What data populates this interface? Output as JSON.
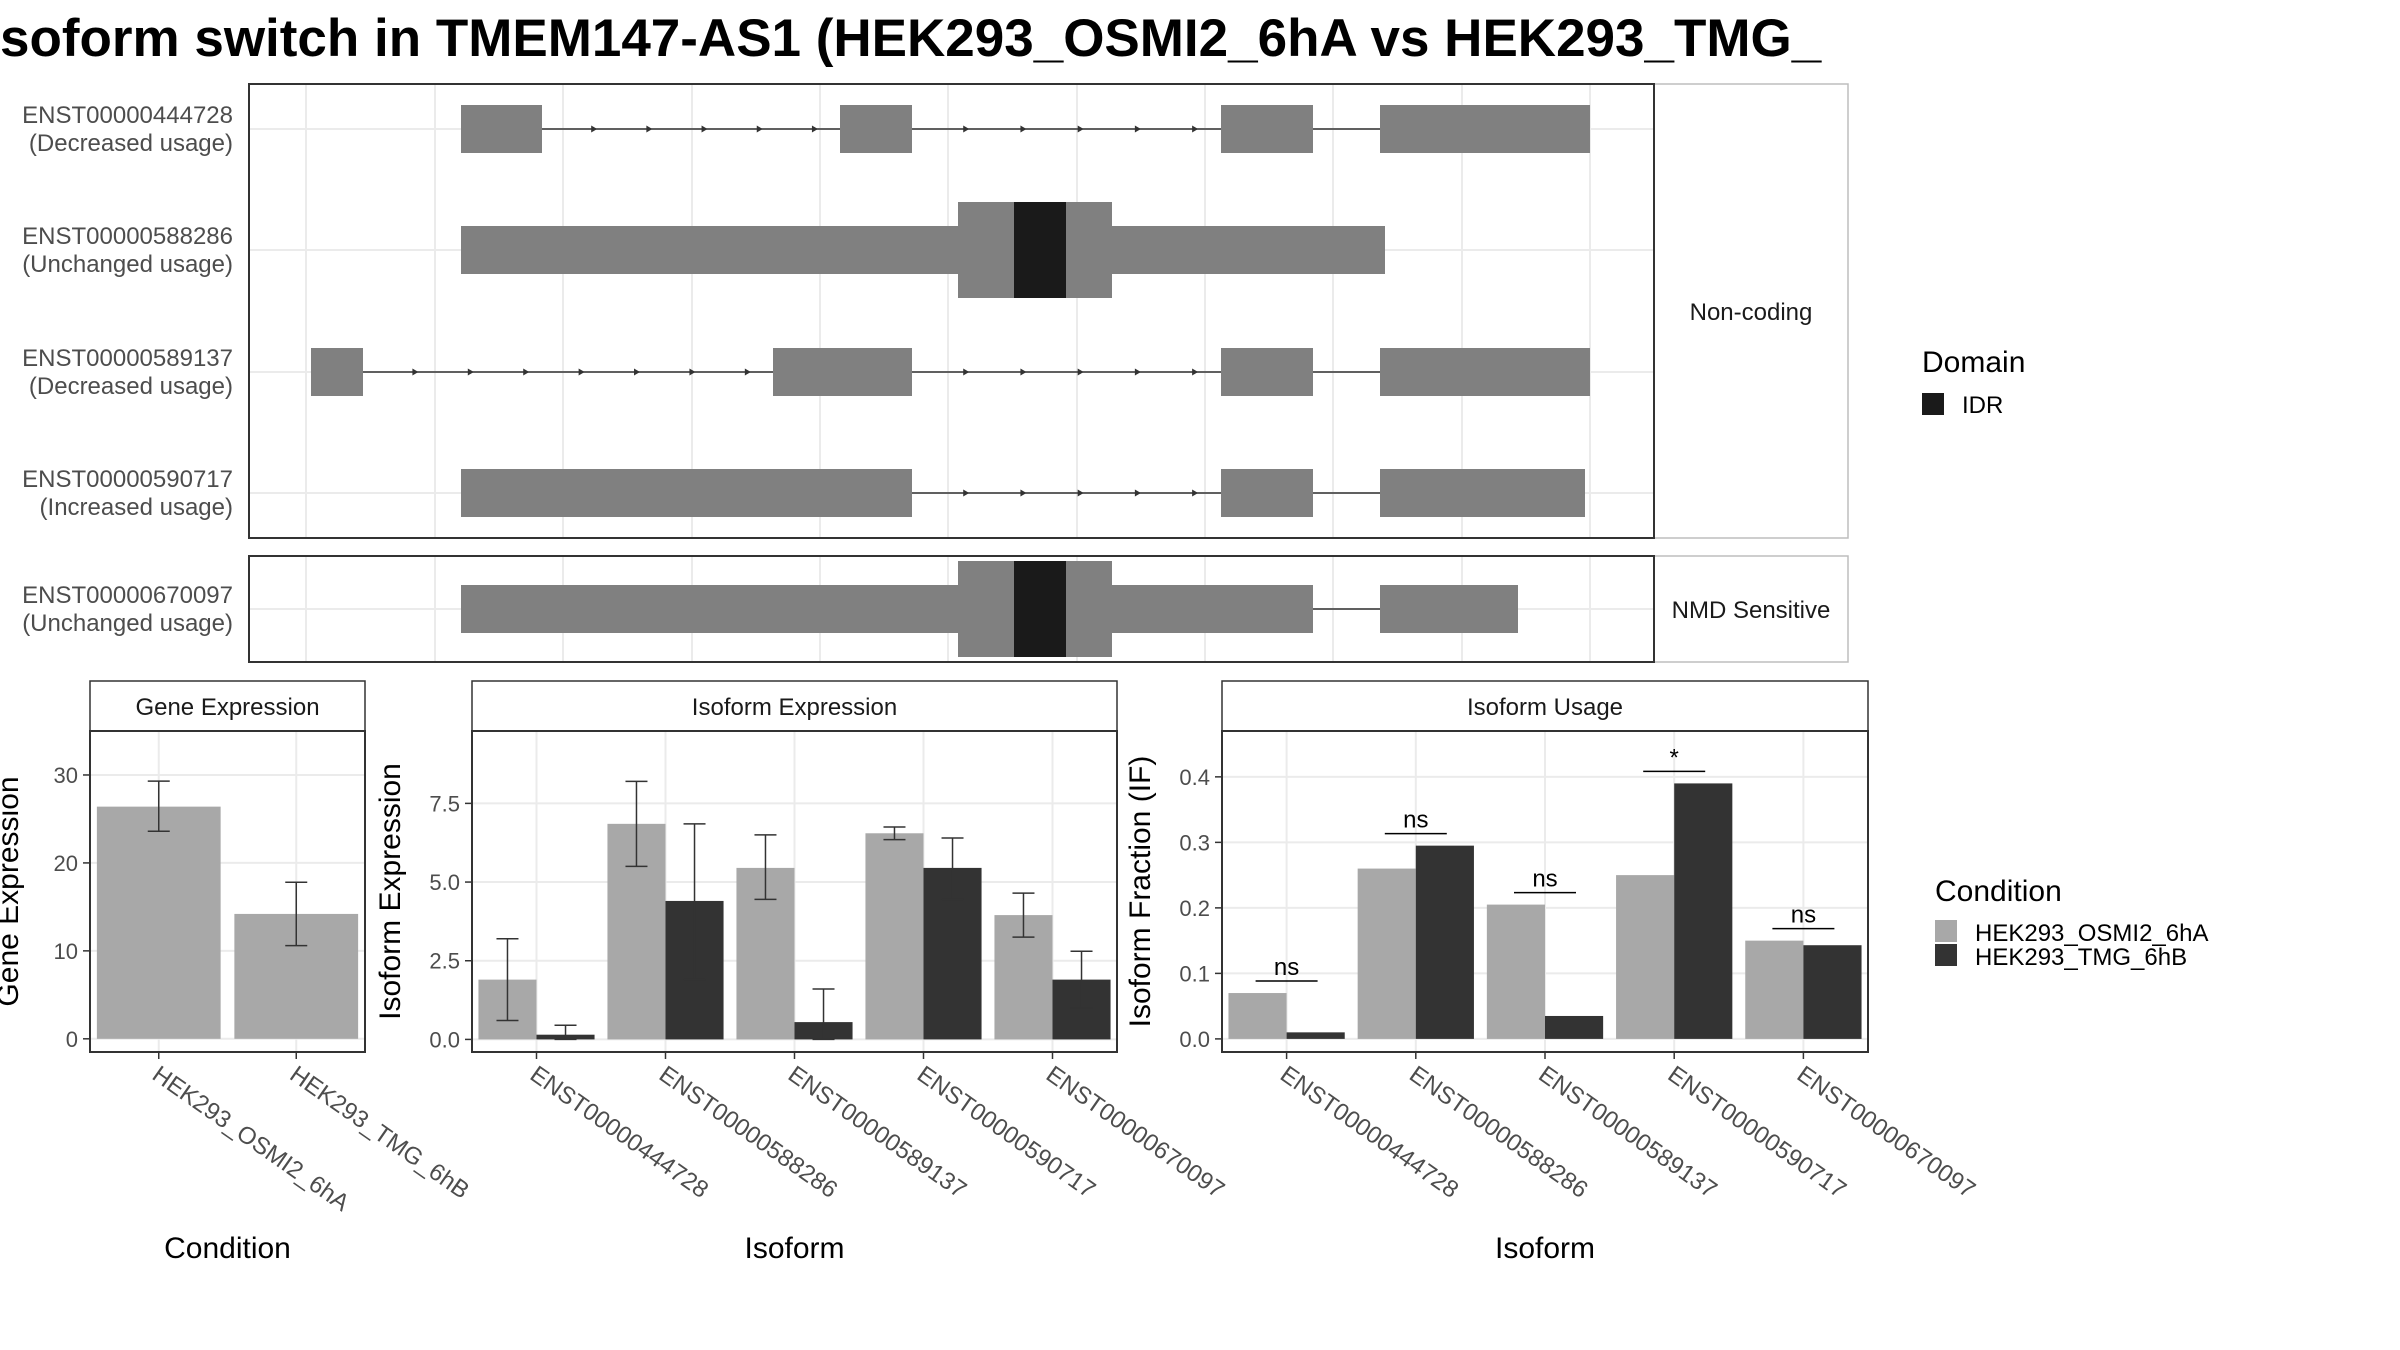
{
  "title": "soform switch in TMEM147-AS1 (HEK293_OSMI2_6hA vs HEK293_TMG_",
  "colors": {
    "exon": "#808080",
    "idr": "#1a1a1a",
    "cond_a": "#a8a8a8",
    "cond_b": "#333333",
    "grid": "#ebebeb",
    "strip": "#ffffff"
  },
  "transcript_panel": {
    "groups": [
      {
        "label": "Non-coding",
        "transcripts": [
          {
            "id": "ENST00000444728",
            "usage": "(Decreased usage)"
          },
          {
            "id": "ENST00000588286",
            "usage": "(Unchanged usage)"
          },
          {
            "id": "ENST00000589137",
            "usage": "(Decreased usage)"
          },
          {
            "id": "ENST00000590717",
            "usage": "(Increased usage)"
          }
        ]
      },
      {
        "label": "NMD Sensitive",
        "transcripts": [
          {
            "id": "ENST00000670097",
            "usage": "(Unchanged usage)"
          }
        ]
      }
    ]
  },
  "legends": {
    "domain": {
      "title": "Domain",
      "items": [
        {
          "label": "IDR",
          "color": "#1a1a1a"
        }
      ]
    },
    "condition": {
      "title": "Condition",
      "items": [
        {
          "label": "HEK293_OSMI2_6hA",
          "color": "#a8a8a8"
        },
        {
          "label": "HEK293_TMG_6hB",
          "color": "#333333"
        }
      ]
    }
  },
  "chart_data": [
    {
      "type": "bar",
      "title": "Gene Expression",
      "xlabel": "Condition",
      "ylabel": "Gene Expression",
      "ylim": [
        -1.5,
        35
      ],
      "yticks": [
        0,
        10,
        20,
        30
      ],
      "categories": [
        "HEK293_OSMI2_6hA",
        "HEK293_TMG_6hB"
      ],
      "values": [
        26.4,
        14.2
      ],
      "error_low": [
        23.6,
        10.6
      ],
      "error_high": [
        29.3,
        17.8
      ]
    },
    {
      "type": "bar",
      "title": "Isoform Expression",
      "xlabel": "Isoform",
      "ylabel": "Isoform Expression",
      "ylim": [
        -0.4,
        9.8
      ],
      "yticks": [
        "0.0",
        "2.5",
        "5.0",
        "7.5"
      ],
      "categories": [
        "ENST00000444728",
        "ENST00000588286",
        "ENST00000589137",
        "ENST00000590717",
        "ENST00000670097"
      ],
      "series": [
        {
          "name": "HEK293_OSMI2_6hA",
          "values": [
            1.9,
            6.85,
            5.45,
            6.55,
            3.95
          ],
          "error_low": [
            0.6,
            5.5,
            4.45,
            6.35,
            3.25
          ],
          "error_high": [
            3.2,
            8.2,
            6.5,
            6.75,
            4.65
          ]
        },
        {
          "name": "HEK293_TMG_6hB",
          "values": [
            0.15,
            4.4,
            0.55,
            5.45,
            1.9
          ],
          "error_low": [
            0.0,
            1.9,
            0.0,
            4.45,
            1.0
          ],
          "error_high": [
            0.45,
            6.85,
            1.6,
            6.4,
            2.8
          ]
        }
      ]
    },
    {
      "type": "bar",
      "title": "Isoform Usage",
      "xlabel": "Isoform",
      "ylabel": "Isoform Fraction (IF)",
      "ylim": [
        -0.02,
        0.47
      ],
      "yticks": [
        "0.0",
        "0.1",
        "0.2",
        "0.3",
        "0.4"
      ],
      "categories": [
        "ENST00000444728",
        "ENST00000588286",
        "ENST00000589137",
        "ENST00000590717",
        "ENST00000670097"
      ],
      "series": [
        {
          "name": "HEK293_OSMI2_6hA",
          "values": [
            0.07,
            0.26,
            0.205,
            0.25,
            0.15
          ]
        },
        {
          "name": "HEK293_TMG_6hB",
          "values": [
            0.01,
            0.295,
            0.035,
            0.39,
            0.143
          ]
        }
      ],
      "significance": [
        "ns",
        "ns",
        "ns",
        "*",
        "ns"
      ]
    }
  ]
}
